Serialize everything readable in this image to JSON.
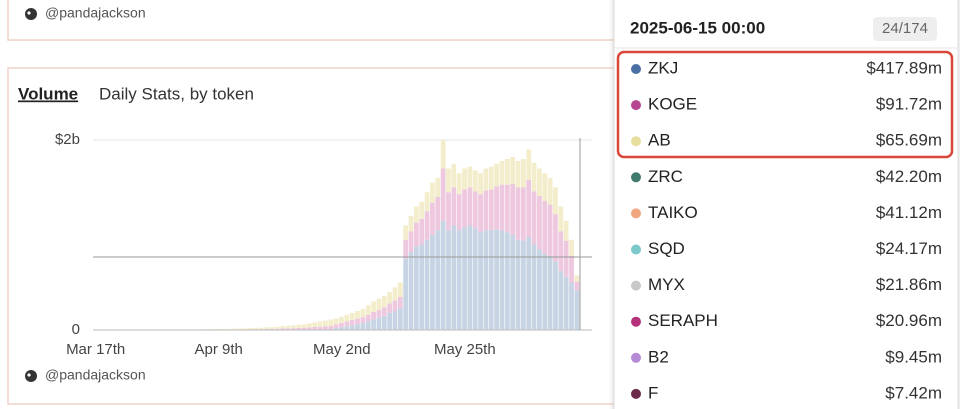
{
  "header": {
    "author": "@pandajackson"
  },
  "chart_data": {
    "type": "stacked-bar",
    "title": "Volume",
    "subtitle": "Daily Stats, by token",
    "watermark": "@pandajackson",
    "categories": [
      "Mar 17th",
      null,
      null,
      null,
      null,
      null,
      null,
      null,
      null,
      null,
      null,
      null,
      null,
      null,
      null,
      null,
      null,
      null,
      null,
      null,
      null,
      null,
      null,
      "Apr 9th",
      null,
      null,
      null,
      null,
      null,
      null,
      null,
      null,
      null,
      null,
      null,
      null,
      null,
      null,
      null,
      null,
      null,
      null,
      null,
      null,
      null,
      null,
      "May 2nd",
      null,
      null,
      null,
      null,
      null,
      null,
      null,
      null,
      null,
      null,
      null,
      null,
      null,
      null,
      null,
      null,
      null,
      null,
      null,
      null,
      null,
      null,
      "May 25th",
      null,
      null,
      null,
      null,
      null,
      null,
      null,
      null,
      null,
      null,
      null,
      null,
      null,
      null,
      null,
      null,
      null,
      null,
      null,
      null,
      null
    ],
    "series": [
      {
        "color": "#c6d4e4",
        "values": [
          0,
          0,
          0,
          0,
          0,
          0,
          0,
          0,
          0,
          0,
          0,
          0,
          0,
          0,
          0,
          0,
          0,
          0,
          0,
          0,
          0,
          0,
          0,
          0,
          0,
          0,
          0,
          0,
          0,
          0,
          0,
          0,
          0,
          0,
          0,
          0,
          0,
          0,
          0,
          0,
          0,
          0,
          0,
          0,
          0,
          20,
          30,
          40,
          50,
          60,
          70,
          90,
          110,
          130,
          150,
          180,
          200,
          230,
          750,
          820,
          880,
          900,
          950,
          1000,
          1050,
          1150,
          1050,
          1100,
          1050,
          1080,
          1100,
          1070,
          1030,
          1050,
          1050,
          1060,
          1050,
          1030,
          1000,
          950,
          940,
          980,
          900,
          850,
          800,
          780,
          720,
          620,
          560,
          500,
          417.89
        ]
      },
      {
        "color": "#eec8df",
        "values": [
          1,
          1,
          1,
          1,
          1,
          1,
          1,
          2,
          2,
          1,
          2,
          2,
          2,
          2,
          2,
          3,
          3,
          2,
          3,
          3,
          3,
          3,
          4,
          4,
          4,
          5,
          6,
          6,
          7,
          8,
          9,
          10,
          11,
          12,
          14,
          16,
          18,
          20,
          22,
          25,
          28,
          32,
          35,
          40,
          42,
          40,
          45,
          50,
          55,
          60,
          65,
          70,
          80,
          80,
          90,
          100,
          110,
          120,
          200,
          220,
          250,
          270,
          300,
          340,
          350,
          550,
          400,
          400,
          380,
          400,
          400,
          390,
          400,
          420,
          430,
          450,
          480,
          500,
          540,
          550,
          560,
          600,
          560,
          560,
          560,
          540,
          500,
          420,
          380,
          280,
          91.72
        ]
      },
      {
        "color": "#f3edcb",
        "values": [
          1,
          1,
          2,
          2,
          1,
          2,
          2,
          2,
          2,
          2,
          2,
          3,
          3,
          2,
          3,
          3,
          3,
          3,
          3,
          4,
          5,
          5,
          5,
          6,
          6,
          7,
          8,
          9,
          11,
          12,
          13,
          15,
          17,
          18,
          21,
          24,
          27,
          30,
          33,
          35,
          42,
          48,
          55,
          60,
          68,
          60,
          65,
          70,
          75,
          80,
          85,
          100,
          110,
          120,
          120,
          120,
          140,
          150,
          150,
          160,
          170,
          180,
          200,
          210,
          200,
          300,
          250,
          250,
          220,
          220,
          220,
          220,
          220,
          230,
          240,
          240,
          250,
          270,
          280,
          280,
          300,
          320,
          300,
          290,
          290,
          280,
          280,
          260,
          210,
          170,
          65.69
        ]
      }
    ],
    "ylim": [
      0,
      2000
    ],
    "yticks": [
      0,
      {
        "value": 2000,
        "label": "$2b"
      }
    ],
    "grid": true
  },
  "tooltip": {
    "time": "2025-06-15 00:00",
    "count": "24/174",
    "rows": [
      {
        "name": "ZKJ",
        "value": "$417.89m",
        "color": "#4a6fa5"
      },
      {
        "name": "KOGE",
        "value": "$91.72m",
        "color": "#b5468f"
      },
      {
        "name": "AB",
        "value": "$65.69m",
        "color": "#e8df9e"
      },
      {
        "name": "ZRC",
        "value": "$42.20m",
        "color": "#3f7a6f"
      },
      {
        "name": "TAIKO",
        "value": "$41.12m",
        "color": "#f0a77f"
      },
      {
        "name": "SQD",
        "value": "$24.17m",
        "color": "#7cc9cc"
      },
      {
        "name": "MYX",
        "value": "$21.86m",
        "color": "#c8c8c8"
      },
      {
        "name": "SERAPH",
        "value": "$20.96m",
        "color": "#b5327a"
      },
      {
        "name": "B2",
        "value": "$9.45m",
        "color": "#b58ad6"
      },
      {
        "name": "F",
        "value": "$7.42m",
        "color": "#6b2a4a"
      }
    ]
  }
}
